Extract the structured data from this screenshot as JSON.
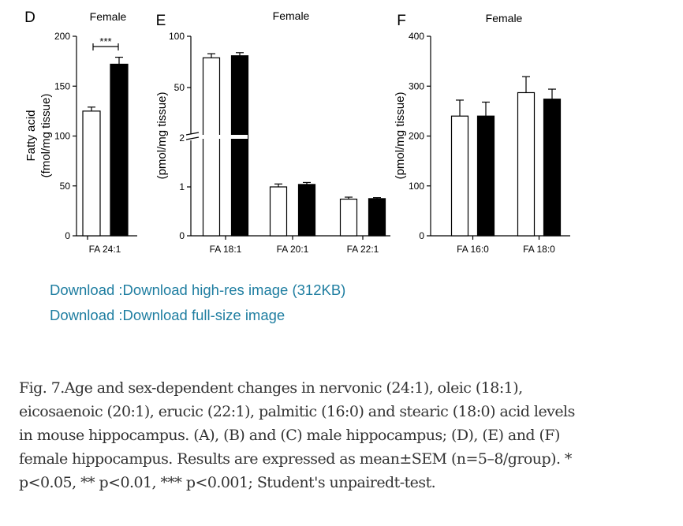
{
  "chart_data": [
    {
      "panel": "D",
      "type": "bar",
      "title": "Female",
      "ylabel": [
        "Fatty acid",
        "(fmol/mg tissue)"
      ],
      "ylim": [
        0,
        200
      ],
      "yticks": [
        0,
        50,
        100,
        150,
        200
      ],
      "categories": [
        "FA 24:1"
      ],
      "series": [
        {
          "fill": "white",
          "values": [
            125
          ],
          "errors": [
            4
          ]
        },
        {
          "fill": "black",
          "values": [
            172
          ],
          "errors": [
            7
          ]
        }
      ],
      "significance": "***"
    },
    {
      "panel": "E",
      "type": "bar",
      "title": "Female",
      "ylabel": "(pmol/mg tissue)",
      "axis_break": true,
      "yticks_lower": [
        0,
        1,
        2
      ],
      "yticks_upper": [
        50,
        100
      ],
      "categories": [
        "FA 18:1",
        "FA 20:1",
        "FA 22:1"
      ],
      "series": [
        {
          "fill": "white",
          "values": [
            79,
            1.0,
            0.75
          ],
          "errors": [
            4,
            0.06,
            0.04
          ]
        },
        {
          "fill": "black",
          "values": [
            81,
            1.05,
            0.76
          ],
          "errors": [
            3,
            0.04,
            0.02
          ]
        }
      ]
    },
    {
      "panel": "F",
      "type": "bar",
      "title": "Female",
      "ylabel": "(pmol/mg tissue)",
      "ylim": [
        0,
        400
      ],
      "yticks": [
        0,
        100,
        200,
        300,
        400
      ],
      "categories": [
        "FA 16:0",
        "FA 18:0"
      ],
      "series": [
        {
          "fill": "white",
          "values": [
            240,
            287
          ],
          "errors": [
            32,
            32
          ]
        },
        {
          "fill": "black",
          "values": [
            240,
            274
          ],
          "errors": [
            28,
            20
          ]
        }
      ]
    }
  ],
  "links": {
    "high_res": "Download :Download high-res image (312KB)",
    "full_size": "Download :Download full-size image"
  },
  "caption": {
    "lines": [
      "Fig. 7.Age and sex-dependent changes in nervonic (24:1), oleic (18:1),",
      "eicosaenoic (20:1), erucic (22:1), palmitic (16:0) and stearic (18:0) acid levels",
      "in mouse hippocampus. (A), (B) and (C) male hippocampus; (D), (E) and (F)",
      "female hippocampus. Results are expressed as mean±SEM (n=5–8/group). *",
      "p<0.05, ** p<0.01, *** p<0.001; Student's unpairedt-test."
    ]
  },
  "colors": {
    "link": "#1f7ea1",
    "caption_text": "#333333",
    "bar_dark": "#000000",
    "bar_light": "#ffffff"
  }
}
